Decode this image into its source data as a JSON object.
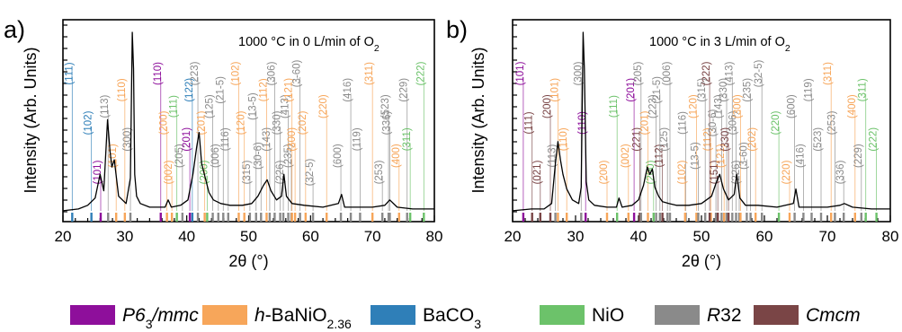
{
  "phase_colors": {
    "P63mmc": "#8e0f9b",
    "hBaNiO": "#f7a65a",
    "BaCO3": "#2f7fb8",
    "NiO": "#6cc26a",
    "R32": "#8a8a8a",
    "Cmcm": "#7a4546"
  },
  "legend": [
    {
      "key": "P63mmc",
      "parts": [
        [
          "P6",
          "i"
        ],
        [
          "3",
          "subi"
        ],
        [
          "/mmc",
          "i"
        ]
      ]
    },
    {
      "key": "hBaNiO",
      "parts": [
        [
          "h",
          "i"
        ],
        [
          "-BaNiO",
          ""
        ],
        [
          "2.36",
          "sub"
        ]
      ]
    },
    {
      "key": "BaCO3",
      "parts": [
        [
          "BaCO",
          ""
        ],
        [
          "3",
          "sub"
        ]
      ]
    },
    {
      "key": "NiO",
      "parts": [
        [
          "NiO",
          ""
        ]
      ]
    },
    {
      "key": "R32",
      "parts": [
        [
          "R",
          "i"
        ],
        [
          "32",
          ""
        ]
      ]
    },
    {
      "key": "Cmcm",
      "parts": [
        [
          "Cmcm",
          "i"
        ]
      ]
    }
  ],
  "chart_data": [
    {
      "panel_label": "a)",
      "type": "line",
      "annotation": {
        "main": "1000 °C in 0 L/min of O",
        "sub": "2"
      },
      "xlabel": "2θ (°)",
      "ylabel": "Intensity (Arb. Units)",
      "xlim": [
        20,
        80
      ],
      "xticks": [
        20,
        30,
        40,
        50,
        60,
        70,
        80
      ],
      "y_tick_labels": false,
      "series": [
        {
          "x": [
            20.0,
            22.5,
            24.0,
            25.2,
            26.0,
            26.6,
            27.2,
            27.6,
            27.9,
            28.3,
            29.0,
            30.2,
            30.9,
            31.2,
            31.4,
            31.6,
            31.9,
            32.5,
            34.0,
            36.5,
            37.0,
            37.5,
            39.0,
            40.2,
            41.0,
            41.6,
            42.0,
            42.4,
            43.0,
            43.6,
            44.3,
            45.5,
            47.0,
            49.0,
            50.5,
            51.5,
            52.4,
            53.0,
            53.6,
            54.5,
            55.3,
            55.7,
            56.1,
            57.0,
            59.0,
            62.0,
            64.5,
            65.0,
            65.5,
            67.0,
            70.0,
            72.0,
            72.8,
            74.0,
            76.5,
            78.0,
            80.0
          ],
          "y": [
            2,
            3,
            5,
            9,
            22,
            13,
            52,
            35,
            26,
            30,
            10,
            6,
            20,
            100,
            80,
            22,
            10,
            6,
            4,
            4,
            8,
            4,
            5,
            8,
            22,
            37,
            45,
            28,
            20,
            12,
            8,
            6,
            5,
            5,
            6,
            10,
            16,
            19,
            13,
            8,
            10,
            22,
            10,
            6,
            5,
            4,
            6,
            11,
            4,
            4,
            4,
            5,
            8,
            4,
            3,
            3,
            3
          ]
        }
      ],
      "reflections": [
        {
          "hkl": "(111)",
          "x": 21.5,
          "phase": "BaCO3"
        },
        {
          "hkl": "(102)",
          "x": 24.6,
          "phase": "BaCO3"
        },
        {
          "hkl": "(101)",
          "x": 26.1,
          "phase": "P63mmc"
        },
        {
          "hkl": "(113)",
          "x": 27.3,
          "phase": "R32"
        },
        {
          "hkl": "(101)",
          "x": 28.6,
          "phase": "hBaNiO"
        },
        {
          "hkl": "(110)",
          "x": 30.0,
          "phase": "hBaNiO"
        },
        {
          "hkl": "(300)",
          "x": 30.9,
          "phase": "R32"
        },
        {
          "hkl": "(110)",
          "x": 35.8,
          "phase": "P63mmc"
        },
        {
          "hkl": "(200)",
          "x": 36.8,
          "phase": "hBaNiO"
        },
        {
          "hkl": "(002)",
          "x": 37.6,
          "phase": "hBaNiO"
        },
        {
          "hkl": "(111)",
          "x": 38.4,
          "phase": "NiO"
        },
        {
          "hkl": "(205)",
          "x": 39.3,
          "phase": "R32"
        },
        {
          "hkl": "(122)",
          "x": 40.9,
          "phase": "BaCO3"
        },
        {
          "hkl": "(201)",
          "x": 40.5,
          "phase": "P63mmc"
        },
        {
          "hkl": "(223)",
          "x": 41.8,
          "phase": "R32"
        },
        {
          "hkl": "(201)",
          "x": 42.9,
          "phase": "hBaNiO"
        },
        {
          "hkl": "(200)",
          "x": 43.3,
          "phase": "NiO"
        },
        {
          "hkl": "(125)",
          "x": 44.2,
          "phase": "R32"
        },
        {
          "hkl": "(006)",
          "x": 45.1,
          "phase": "R32"
        },
        {
          "hkl": "(21-5)",
          "x": 45.9,
          "phase": "R32"
        },
        {
          "hkl": "(116)",
          "x": 46.7,
          "phase": "R32"
        },
        {
          "hkl": "(102)",
          "x": 48.4,
          "phase": "hBaNiO"
        },
        {
          "hkl": "(120)",
          "x": 49.3,
          "phase": "hBaNiO"
        },
        {
          "hkl": "(315)",
          "x": 50.2,
          "phase": "R32"
        },
        {
          "hkl": "(13-5)",
          "x": 51.2,
          "phase": "R32"
        },
        {
          "hkl": "(30-6)",
          "x": 52.0,
          "phase": "R32"
        },
        {
          "hkl": "(112)",
          "x": 52.9,
          "phase": "hBaNiO"
        },
        {
          "hkl": "(143)",
          "x": 53.4,
          "phase": "R32"
        },
        {
          "hkl": "(306)",
          "x": 54.2,
          "phase": "R32"
        },
        {
          "hkl": "(330)",
          "x": 55.1,
          "phase": "R32"
        },
        {
          "hkl": "(226)",
          "x": 55.6,
          "phase": "R32"
        },
        {
          "hkl": "(413)",
          "x": 56.4,
          "phase": "R32"
        },
        {
          "hkl": "(235)",
          "x": 56.9,
          "phase": "R32"
        },
        {
          "hkl": "(121)",
          "x": 57.0,
          "phase": "hBaNiO"
        },
        {
          "hkl": "(300)",
          "x": 57.5,
          "phase": "hBaNiO"
        },
        {
          "hkl": "(3-60)",
          "x": 58.3,
          "phase": "R32"
        },
        {
          "hkl": "(202)",
          "x": 59.2,
          "phase": "hBaNiO"
        },
        {
          "hkl": "(32-5)",
          "x": 60.4,
          "phase": "R32"
        },
        {
          "hkl": "(220)",
          "x": 62.6,
          "phase": "hBaNiO"
        },
        {
          "hkl": "(600)",
          "x": 64.9,
          "phase": "R32"
        },
        {
          "hkl": "(416)",
          "x": 66.5,
          "phase": "R32"
        },
        {
          "hkl": "(119)",
          "x": 68.0,
          "phase": "R32"
        },
        {
          "hkl": "(311)",
          "x": 70.0,
          "phase": "hBaNiO"
        },
        {
          "hkl": "(336)",
          "x": 72.8,
          "phase": "R32"
        },
        {
          "hkl": "(253)",
          "x": 71.6,
          "phase": "R32"
        },
        {
          "hkl": "(523)",
          "x": 72.6,
          "phase": "R32"
        },
        {
          "hkl": "(400)",
          "x": 74.3,
          "phase": "hBaNiO"
        },
        {
          "hkl": "(229)",
          "x": 75.6,
          "phase": "R32"
        },
        {
          "hkl": "(311)",
          "x": 76.1,
          "phase": "NiO"
        },
        {
          "hkl": "(222)",
          "x": 78.3,
          "phase": "NiO"
        }
      ]
    },
    {
      "panel_label": "b)",
      "type": "line",
      "annotation": {
        "main": "1000 °C in 3 L/min of O",
        "sub": "2"
      },
      "xlabel": "2θ (°)",
      "ylabel": "Intensity (Arb. Units)",
      "xlim": [
        20,
        80
      ],
      "xticks": [
        20,
        30,
        40,
        50,
        60,
        70,
        80
      ],
      "y_tick_labels": false,
      "series": [
        {
          "x": [
            20.0,
            23.0,
            25.0,
            26.2,
            26.8,
            27.2,
            27.6,
            28.0,
            28.6,
            29.5,
            30.5,
            30.9,
            31.2,
            31.4,
            31.7,
            32.1,
            33.0,
            35.0,
            36.5,
            36.9,
            37.4,
            39.0,
            40.0,
            40.8,
            41.4,
            41.8,
            42.2,
            42.6,
            43.2,
            43.8,
            44.8,
            46.0,
            48.0,
            50.0,
            51.6,
            52.3,
            52.9,
            53.5,
            54.3,
            55.2,
            55.6,
            56.1,
            57.0,
            59.0,
            62.0,
            64.6,
            65.0,
            65.5,
            67.0,
            70.0,
            72.0,
            72.7,
            74.0,
            77.0,
            80.0
          ],
          "y": [
            2,
            3,
            3,
            6,
            28,
            40,
            30,
            22,
            14,
            8,
            6,
            15,
            100,
            80,
            18,
            8,
            5,
            4,
            4,
            9,
            4,
            5,
            8,
            16,
            26,
            22,
            25,
            15,
            10,
            7,
            6,
            5,
            5,
            6,
            10,
            17,
            22,
            14,
            8,
            11,
            22,
            9,
            5,
            5,
            4,
            6,
            14,
            4,
            4,
            4,
            5,
            6,
            4,
            3,
            3
          ]
        }
      ],
      "reflections": [
        {
          "hkl": "(101)",
          "x": 21.7,
          "phase": "P63mmc"
        },
        {
          "hkl": "(111)",
          "x": 23.1,
          "phase": "Cmcm"
        },
        {
          "hkl": "(021)",
          "x": 24.4,
          "phase": "Cmcm"
        },
        {
          "hkl": "(200)",
          "x": 26.0,
          "phase": "Cmcm"
        },
        {
          "hkl": "(113)",
          "x": 26.8,
          "phase": "R32"
        },
        {
          "hkl": "(101)",
          "x": 27.2,
          "phase": "hBaNiO"
        },
        {
          "hkl": "(110)",
          "x": 28.6,
          "phase": "hBaNiO"
        },
        {
          "hkl": "(300)",
          "x": 30.9,
          "phase": "R32"
        },
        {
          "hkl": "(110)",
          "x": 31.6,
          "phase": "P63mmc"
        },
        {
          "hkl": "(200)",
          "x": 35.0,
          "phase": "hBaNiO"
        },
        {
          "hkl": "(111)",
          "x": 36.6,
          "phase": "NiO"
        },
        {
          "hkl": "(002)",
          "x": 38.4,
          "phase": "hBaNiO"
        },
        {
          "hkl": "(201)",
          "x": 39.3,
          "phase": "P63mmc"
        },
        {
          "hkl": "(221)",
          "x": 40.2,
          "phase": "Cmcm"
        },
        {
          "hkl": "(205)",
          "x": 40.4,
          "phase": "R32"
        },
        {
          "hkl": "(201)",
          "x": 41.5,
          "phase": "hBaNiO"
        },
        {
          "hkl": "(200)",
          "x": 42.4,
          "phase": "NiO"
        },
        {
          "hkl": "(223)",
          "x": 42.8,
          "phase": "R32"
        },
        {
          "hkl": "(112)",
          "x": 43.8,
          "phase": "Cmcm"
        },
        {
          "hkl": "(21-5)",
          "x": 43.4,
          "phase": "R32"
        },
        {
          "hkl": "(125)",
          "x": 44.6,
          "phase": "R32"
        },
        {
          "hkl": "(006)",
          "x": 45.0,
          "phase": "R32"
        },
        {
          "hkl": "(116)",
          "x": 47.5,
          "phase": "R32"
        },
        {
          "hkl": "(102)",
          "x": 47.4,
          "phase": "hBaNiO"
        },
        {
          "hkl": "(120)",
          "x": 49.2,
          "phase": "hBaNiO"
        },
        {
          "hkl": "(13-5)",
          "x": 49.5,
          "phase": "R32"
        },
        {
          "hkl": "(315)",
          "x": 50.6,
          "phase": "R32"
        },
        {
          "hkl": "(112)",
          "x": 51.5,
          "phase": "hBaNiO"
        },
        {
          "hkl": "(222)",
          "x": 51.3,
          "phase": "Cmcm"
        },
        {
          "hkl": "(30-6)",
          "x": 52.3,
          "phase": "R32"
        },
        {
          "hkl": "(151)",
          "x": 52.6,
          "phase": "Cmcm"
        },
        {
          "hkl": "(143)",
          "x": 53.2,
          "phase": "R32"
        },
        {
          "hkl": "(121)",
          "x": 53.6,
          "phase": "hBaNiO"
        },
        {
          "hkl": "(330)",
          "x": 54.0,
          "phase": "R32"
        },
        {
          "hkl": "(330)",
          "x": 54.3,
          "phase": "Cmcm"
        },
        {
          "hkl": "(413)",
          "x": 54.9,
          "phase": "R32"
        },
        {
          "hkl": "(306)",
          "x": 55.5,
          "phase": "R32"
        },
        {
          "hkl": "(226)",
          "x": 56.0,
          "phase": "R32"
        },
        {
          "hkl": "(300)",
          "x": 56.2,
          "phase": "hBaNiO"
        },
        {
          "hkl": "(3-60)",
          "x": 57.2,
          "phase": "R32"
        },
        {
          "hkl": "(235)",
          "x": 57.8,
          "phase": "R32"
        },
        {
          "hkl": "(202)",
          "x": 58.6,
          "phase": "hBaNiO"
        },
        {
          "hkl": "(32-5)",
          "x": 59.6,
          "phase": "R32"
        },
        {
          "hkl": "(220)",
          "x": 62.3,
          "phase": "NiO"
        },
        {
          "hkl": "(220)",
          "x": 64.0,
          "phase": "hBaNiO"
        },
        {
          "hkl": "(600)",
          "x": 64.8,
          "phase": "R32"
        },
        {
          "hkl": "(416)",
          "x": 66.2,
          "phase": "R32"
        },
        {
          "hkl": "(119)",
          "x": 67.5,
          "phase": "R32"
        },
        {
          "hkl": "(523)",
          "x": 69.0,
          "phase": "R32"
        },
        {
          "hkl": "(311)",
          "x": 70.6,
          "phase": "hBaNiO"
        },
        {
          "hkl": "(253)",
          "x": 71.2,
          "phase": "R32"
        },
        {
          "hkl": "(336)",
          "x": 72.6,
          "phase": "R32"
        },
        {
          "hkl": "(400)",
          "x": 74.4,
          "phase": "hBaNiO"
        },
        {
          "hkl": "(229)",
          "x": 75.4,
          "phase": "R32"
        },
        {
          "hkl": "(311)",
          "x": 76.1,
          "phase": "NiO"
        },
        {
          "hkl": "(222)",
          "x": 77.8,
          "phase": "NiO"
        }
      ]
    }
  ]
}
